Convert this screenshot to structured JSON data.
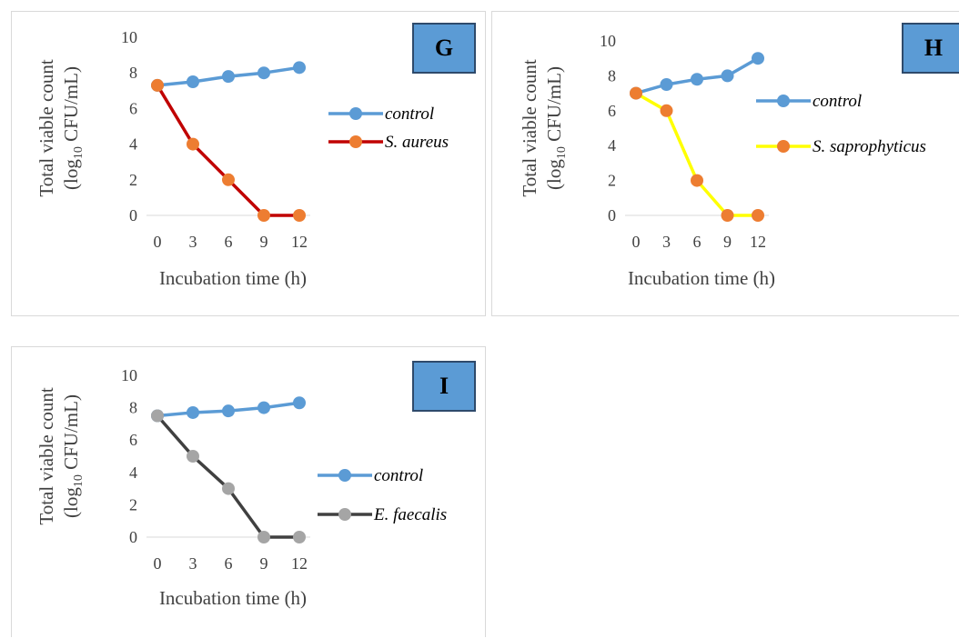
{
  "chart_data": [
    {
      "panel": "G",
      "type": "line",
      "x": [
        0,
        3,
        6,
        9,
        12
      ],
      "xlabel": "Incubation time (h)",
      "ylabel_line1": "Total viable count",
      "ylabel_line2": "(log",
      "ylabel_sub": "10",
      "ylabel_line2_end": " CFU/mL)",
      "ylim": [
        0,
        10
      ],
      "yticks": [
        0,
        2,
        4,
        6,
        8,
        10
      ],
      "legend_position": "right",
      "series": [
        {
          "name": "control",
          "values": [
            7.3,
            7.5,
            7.8,
            8.0,
            8.3
          ],
          "color": "#5b9bd5",
          "marker": "#5b9bd5"
        },
        {
          "name": "S. aureus",
          "values": [
            7.3,
            4.0,
            2.0,
            0.0,
            0.0
          ],
          "color": "#c00000",
          "marker": "#ed7d31"
        }
      ]
    },
    {
      "panel": "H",
      "type": "line",
      "x": [
        0,
        3,
        6,
        9,
        12
      ],
      "xlabel": "Incubation time (h)",
      "ylabel_line1": "Total viable count",
      "ylabel_line2": "(log",
      "ylabel_sub": "10",
      "ylabel_line2_end": " CFU/mL)",
      "ylim": [
        0,
        10
      ],
      "yticks": [
        0,
        2,
        4,
        6,
        8,
        10
      ],
      "legend_position": "right",
      "series": [
        {
          "name": "control",
          "values": [
            7.0,
            7.5,
            7.8,
            8.0,
            9.0
          ],
          "color": "#5b9bd5",
          "marker": "#5b9bd5"
        },
        {
          "name": "S. saprophyticus",
          "values": [
            7.0,
            6.0,
            2.0,
            0.0,
            0.0
          ],
          "color": "#ffff00",
          "marker": "#ed7d31"
        }
      ]
    },
    {
      "panel": "I",
      "type": "line",
      "x": [
        0,
        3,
        6,
        9,
        12
      ],
      "xlabel": "Incubation time (h)",
      "ylabel_line1": "Total viable count",
      "ylabel_line2": "(log",
      "ylabel_sub": "10",
      "ylabel_line2_end": " CFU/mL)",
      "ylim": [
        0,
        10
      ],
      "yticks": [
        0,
        2,
        4,
        6,
        8,
        10
      ],
      "legend_position": "right",
      "series": [
        {
          "name": "control",
          "values": [
            7.5,
            7.7,
            7.8,
            8.0,
            8.3
          ],
          "color": "#5b9bd5",
          "marker": "#5b9bd5"
        },
        {
          "name": "E. faecalis",
          "values": [
            7.5,
            5.0,
            3.0,
            0.0,
            0.0
          ],
          "color": "#404040",
          "marker": "#a5a5a5"
        }
      ]
    }
  ]
}
